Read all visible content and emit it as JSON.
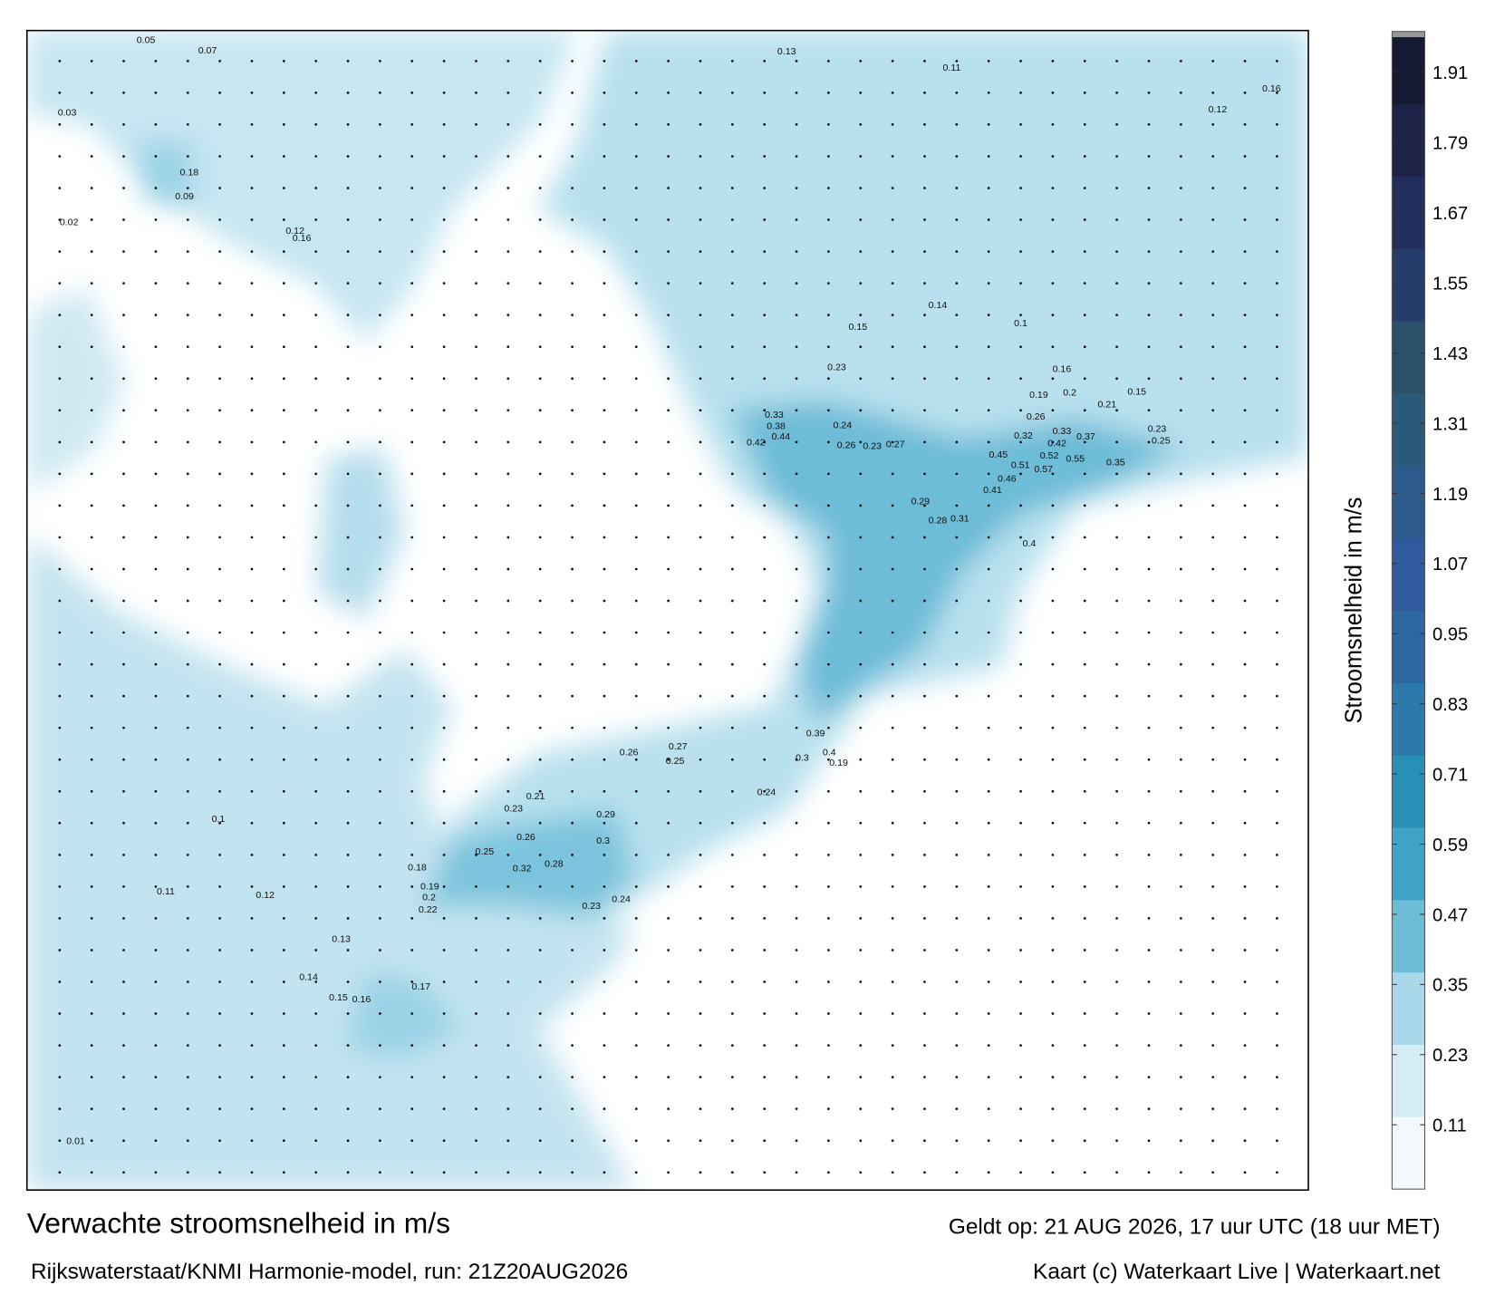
{
  "title": "Verwachte stroomsnelheid in m/s",
  "subtitle": "Rijkswaterstaat/KNMI Harmonie-model, run: 21Z20AUG2026",
  "valid_time": "Geldt op: 21 AUG 2026, 17 uur UTC (18 uur MET)",
  "credit": "Kaart (c) Waterkaart Live | Waterkaart.net",
  "colorbar": {
    "label": "Stroomsnelheid in m/s",
    "lim": [
      0,
      1.98
    ],
    "ticks": [
      0.11,
      0.23,
      0.35,
      0.47,
      0.59,
      0.71,
      0.83,
      0.95,
      1.07,
      1.19,
      1.31,
      1.43,
      1.55,
      1.67,
      1.79,
      1.91
    ],
    "colors": [
      "#f2f8fb",
      "#d6ecf4",
      "#a9d8ea",
      "#6dbcd8",
      "#3fa3c7",
      "#2a8fb5",
      "#2b7aab",
      "#2e66a3",
      "#2f5a9d",
      "#2d5a8a",
      "#2a5a78",
      "#2b5168",
      "#263d6b",
      "#222f5c",
      "#1d2448",
      "#151a33"
    ]
  },
  "current_labels": [
    0.57,
    0.55,
    0.52,
    0.51,
    0.46,
    0.45,
    0.42,
    0.41,
    0.37,
    0.33,
    0.32,
    0.26,
    0.44,
    0.42,
    0.38,
    0.33,
    0.4,
    0.39,
    0.35,
    0.29,
    0.31,
    0.28,
    0.25,
    0.23,
    0.21,
    0.2,
    0.19,
    0.16,
    0.15,
    0.24,
    0.26,
    0.27,
    0.23,
    0.3,
    0.32,
    0.29,
    0.28,
    0.26,
    0.25,
    0.23,
    0.24,
    0.22,
    0.2,
    0.19,
    0.18,
    0.21,
    0.23,
    0.26,
    0.27,
    0.25,
    0.24,
    0.3,
    0.4,
    0.19,
    0.17,
    0.15,
    0.16,
    0.14,
    0.13,
    0.12,
    0.11,
    0.1,
    0.18,
    0.16,
    0.12,
    0.07,
    0.05,
    0.03,
    0.02,
    0.01,
    0.09,
    0.13,
    0.11,
    0.14,
    0.15,
    0.23,
    0.1,
    0.12,
    0.16
  ]
}
